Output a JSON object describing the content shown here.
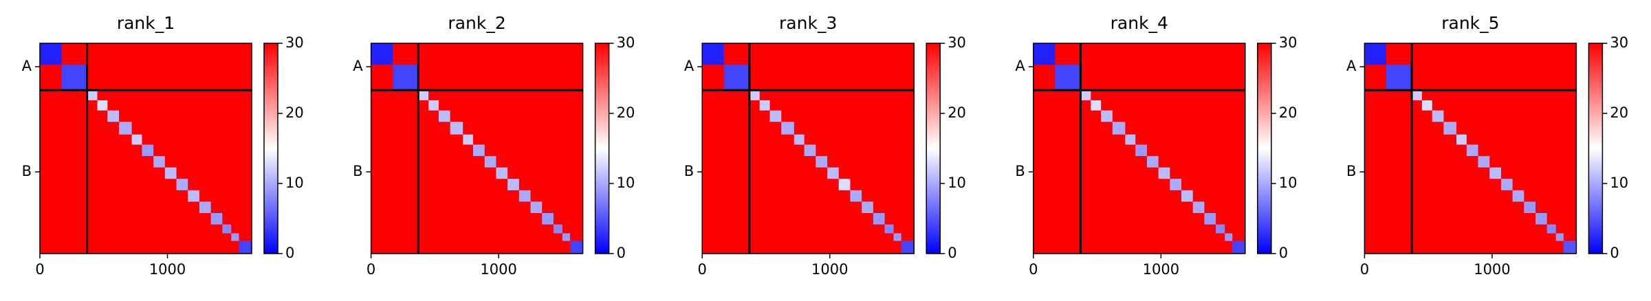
{
  "chart_data": [
    {
      "type": "heatmap",
      "title": "rank_1",
      "xlim": [
        0,
        1660
      ],
      "ylim": [
        1660,
        0
      ],
      "xticks": [
        0,
        1000
      ],
      "yticks": [
        {
          "value": 185,
          "label": "A"
        },
        {
          "value": 1015,
          "label": "B"
        }
      ],
      "chain_breaks": [
        370
      ],
      "clim": [
        0,
        30
      ],
      "cticks": [
        0,
        10,
        20,
        30
      ],
      "colormap": [
        "#0000ff",
        "#ffffff",
        "#ff0000"
      ],
      "background": 30,
      "blocks": [
        [
          0,
          170,
          2
        ],
        [
          170,
          370,
          4
        ],
        [
          370,
          450,
          12
        ],
        [
          450,
          530,
          13
        ],
        [
          530,
          620,
          11
        ],
        [
          620,
          720,
          10
        ],
        [
          720,
          800,
          12
        ],
        [
          800,
          890,
          9
        ],
        [
          890,
          980,
          10
        ],
        [
          980,
          1070,
          11
        ],
        [
          1070,
          1160,
          10
        ],
        [
          1160,
          1250,
          11
        ],
        [
          1250,
          1340,
          10
        ],
        [
          1340,
          1430,
          9
        ],
        [
          1430,
          1500,
          8
        ],
        [
          1500,
          1560,
          9
        ],
        [
          1560,
          1660,
          4
        ]
      ]
    },
    {
      "type": "heatmap",
      "title": "rank_2",
      "xlim": [
        0,
        1660
      ],
      "ylim": [
        1660,
        0
      ],
      "xticks": [
        0,
        1000
      ],
      "yticks": [
        {
          "value": 185,
          "label": "A"
        },
        {
          "value": 1015,
          "label": "B"
        }
      ],
      "chain_breaks": [
        370
      ],
      "clim": [
        0,
        30
      ],
      "cticks": [
        0,
        10,
        20,
        30
      ],
      "colormap": [
        "#0000ff",
        "#ffffff",
        "#ff0000"
      ],
      "background": 30,
      "blocks": [
        [
          0,
          170,
          2
        ],
        [
          170,
          370,
          4
        ],
        [
          370,
          450,
          12
        ],
        [
          450,
          530,
          12
        ],
        [
          530,
          620,
          11
        ],
        [
          620,
          720,
          11
        ],
        [
          720,
          800,
          12
        ],
        [
          800,
          890,
          10
        ],
        [
          890,
          980,
          10
        ],
        [
          980,
          1070,
          11
        ],
        [
          1070,
          1160,
          11
        ],
        [
          1160,
          1250,
          10
        ],
        [
          1250,
          1340,
          10
        ],
        [
          1340,
          1430,
          9
        ],
        [
          1430,
          1500,
          8
        ],
        [
          1500,
          1560,
          9
        ],
        [
          1560,
          1660,
          4
        ]
      ]
    },
    {
      "type": "heatmap",
      "title": "rank_3",
      "xlim": [
        0,
        1660
      ],
      "ylim": [
        1660,
        0
      ],
      "xticks": [
        0,
        1000
      ],
      "yticks": [
        {
          "value": 185,
          "label": "A"
        },
        {
          "value": 1015,
          "label": "B"
        }
      ],
      "chain_breaks": [
        370
      ],
      "clim": [
        0,
        30
      ],
      "cticks": [
        0,
        10,
        20,
        30
      ],
      "colormap": [
        "#0000ff",
        "#ffffff",
        "#ff0000"
      ],
      "background": 30,
      "blocks": [
        [
          0,
          170,
          2
        ],
        [
          170,
          370,
          4
        ],
        [
          370,
          450,
          12
        ],
        [
          450,
          530,
          12
        ],
        [
          530,
          620,
          11
        ],
        [
          620,
          720,
          10
        ],
        [
          720,
          800,
          11
        ],
        [
          800,
          890,
          10
        ],
        [
          890,
          980,
          10
        ],
        [
          980,
          1070,
          11
        ],
        [
          1070,
          1160,
          13
        ],
        [
          1160,
          1250,
          10
        ],
        [
          1250,
          1340,
          10
        ],
        [
          1340,
          1430,
          9
        ],
        [
          1430,
          1500,
          8
        ],
        [
          1500,
          1560,
          9
        ],
        [
          1560,
          1660,
          4
        ]
      ]
    },
    {
      "type": "heatmap",
      "title": "rank_4",
      "xlim": [
        0,
        1660
      ],
      "ylim": [
        1660,
        0
      ],
      "xticks": [
        0,
        1000
      ],
      "yticks": [
        {
          "value": 185,
          "label": "A"
        },
        {
          "value": 1015,
          "label": "B"
        }
      ],
      "chain_breaks": [
        370
      ],
      "clim": [
        0,
        30
      ],
      "cticks": [
        0,
        10,
        20,
        30
      ],
      "colormap": [
        "#0000ff",
        "#ffffff",
        "#ff0000"
      ],
      "background": 30,
      "blocks": [
        [
          0,
          170,
          2
        ],
        [
          170,
          370,
          4
        ],
        [
          370,
          450,
          12
        ],
        [
          450,
          530,
          13
        ],
        [
          530,
          620,
          11
        ],
        [
          620,
          720,
          10
        ],
        [
          720,
          800,
          11
        ],
        [
          800,
          890,
          9
        ],
        [
          890,
          980,
          10
        ],
        [
          980,
          1070,
          11
        ],
        [
          1070,
          1160,
          10
        ],
        [
          1160,
          1250,
          11
        ],
        [
          1250,
          1340,
          10
        ],
        [
          1340,
          1430,
          9
        ],
        [
          1430,
          1500,
          8
        ],
        [
          1500,
          1560,
          9
        ],
        [
          1560,
          1660,
          4
        ]
      ]
    },
    {
      "type": "heatmap",
      "title": "rank_5",
      "xlim": [
        0,
        1660
      ],
      "ylim": [
        1660,
        0
      ],
      "xticks": [
        0,
        1000
      ],
      "yticks": [
        {
          "value": 185,
          "label": "A"
        },
        {
          "value": 1015,
          "label": "B"
        }
      ],
      "chain_breaks": [
        370
      ],
      "clim": [
        0,
        30
      ],
      "cticks": [
        0,
        10,
        20,
        30
      ],
      "colormap": [
        "#0000ff",
        "#ffffff",
        "#ff0000"
      ],
      "background": 30,
      "blocks": [
        [
          0,
          170,
          2
        ],
        [
          170,
          370,
          4
        ],
        [
          370,
          450,
          12
        ],
        [
          450,
          530,
          13
        ],
        [
          530,
          620,
          11
        ],
        [
          620,
          720,
          10
        ],
        [
          720,
          800,
          12
        ],
        [
          800,
          890,
          10
        ],
        [
          890,
          980,
          10
        ],
        [
          980,
          1070,
          11
        ],
        [
          1070,
          1160,
          10
        ],
        [
          1160,
          1250,
          10
        ],
        [
          1250,
          1340,
          9
        ],
        [
          1340,
          1430,
          9
        ],
        [
          1430,
          1500,
          8
        ],
        [
          1500,
          1560,
          9
        ],
        [
          1560,
          1660,
          5
        ]
      ]
    }
  ]
}
